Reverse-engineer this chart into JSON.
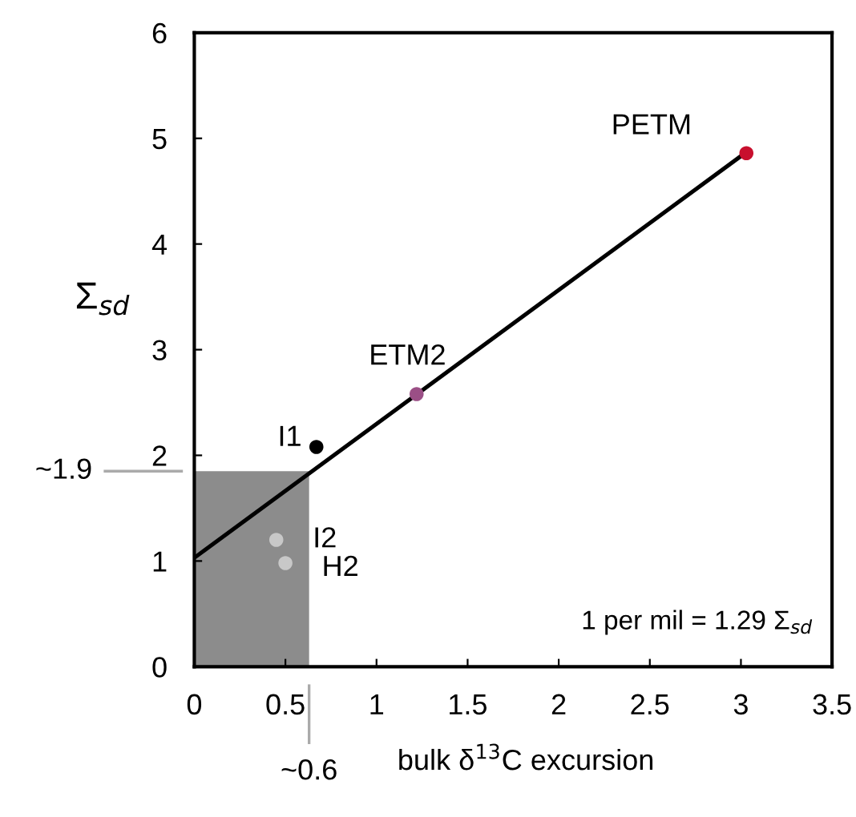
{
  "chart_data": {
    "type": "scatter",
    "xlabel": "bulk δ$^{13}$C excursion",
    "ylabel": "Σ$_{sd}$",
    "xlim": [
      0,
      3.5
    ],
    "ylim": [
      0,
      6
    ],
    "xticks": [
      0,
      0.5,
      1,
      1.5,
      2,
      2.5,
      3,
      3.5
    ],
    "yticks": [
      0,
      1,
      2,
      3,
      4,
      5,
      6
    ],
    "series": [
      {
        "type": "line",
        "color": "#000000",
        "x": [
          0,
          3.03
        ],
        "values": [
          1.03,
          4.87
        ],
        "marker": "none"
      },
      {
        "x": [
          3.03,
          1.22,
          0.67,
          0.45,
          0.5
        ],
        "values": [
          4.86,
          2.58,
          2.08,
          1.2,
          0.98
        ],
        "colors": [
          "#c8102e",
          "#9b4f86",
          "#000000",
          "#c8c8c8",
          "#c8c8c8"
        ]
      }
    ],
    "annotations": [
      {
        "text": "PETM",
        "x": 3.03,
        "y": 4.86
      },
      {
        "text": "ETM2",
        "x": 1.22,
        "y": 2.58
      },
      {
        "text": "I1",
        "x": 0.67,
        "y": 2.08
      },
      {
        "text": "I2",
        "x": 0.45,
        "y": 1.2
      },
      {
        "text": "H2",
        "x": 0.5,
        "y": 0.98
      },
      "1 per mil = 1.29 Σ$_{sd}$"
    ],
    "bands": [
      {
        "axis": "x",
        "from": 0,
        "to": 0.63,
        "color": "#8c8c8c"
      }
    ],
    "ref_lines": [
      {
        "axis": "x",
        "value": 0.63,
        "label": "~0.6",
        "color": "#aaaaaa"
      },
      {
        "axis": "y",
        "value": 1.85,
        "label": "~1.9",
        "color": "#aaaaaa"
      }
    ],
    "grid": false,
    "legend": false
  }
}
